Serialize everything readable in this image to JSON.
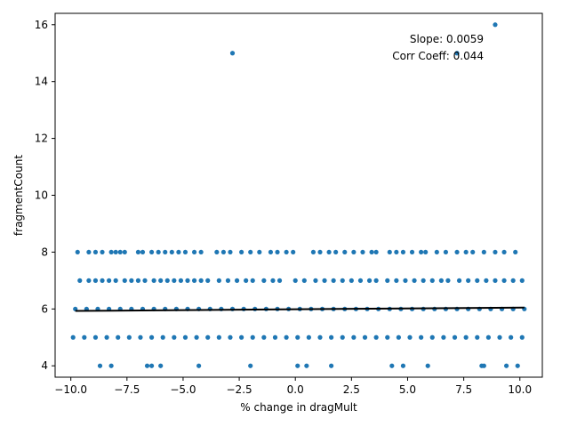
{
  "chart_data": {
    "type": "scatter",
    "xlabel": "% change in dragMult",
    "ylabel": "fragmentCount",
    "xlim": [
      -10.7,
      11.0
    ],
    "ylim": [
      3.6,
      16.4
    ],
    "xticks": [
      -10.0,
      -7.5,
      -5.0,
      -2.5,
      0.0,
      2.5,
      5.0,
      7.5,
      10.0
    ],
    "xtick_labels": [
      "−10.0",
      "−7.5",
      "−5.0",
      "−2.5",
      "0.0",
      "2.5",
      "5.0",
      "7.5",
      "10.0"
    ],
    "yticks": [
      4,
      6,
      8,
      10,
      12,
      14,
      16
    ],
    "ytick_labels": [
      "4",
      "6",
      "8",
      "10",
      "12",
      "14",
      "16"
    ],
    "grid": false,
    "annotations": [
      "Slope: 0.0059",
      "Corr Coeff: 0.044"
    ],
    "colors": {
      "points": "#1f77b4",
      "fit_line": "#000000"
    },
    "fit_line": {
      "x": [
        -9.8,
        10.2
      ],
      "y": [
        5.93,
        6.05
      ]
    },
    "series": [
      {
        "values": [
          {
            "x": -2.8,
            "y": 15
          },
          {
            "x": 8.9,
            "y": 16
          },
          {
            "x": 7.2,
            "y": 15
          },
          {
            "x": -8.7,
            "y": 4
          },
          {
            "x": -8.2,
            "y": 4
          },
          {
            "x": -6.6,
            "y": 4
          },
          {
            "x": -6.4,
            "y": 4
          },
          {
            "x": -6.0,
            "y": 4
          },
          {
            "x": -4.3,
            "y": 4
          },
          {
            "x": -2.0,
            "y": 4
          },
          {
            "x": 0.1,
            "y": 4
          },
          {
            "x": 0.5,
            "y": 4
          },
          {
            "x": 1.6,
            "y": 4
          },
          {
            "x": 4.3,
            "y": 4
          },
          {
            "x": 4.8,
            "y": 4
          },
          {
            "x": 5.9,
            "y": 4
          },
          {
            "x": 8.3,
            "y": 4
          },
          {
            "x": 8.4,
            "y": 4
          },
          {
            "x": 9.4,
            "y": 4
          },
          {
            "x": 9.9,
            "y": 4
          },
          {
            "x": -9.7,
            "y": 8
          },
          {
            "x": -9.2,
            "y": 8
          },
          {
            "x": -8.9,
            "y": 8
          },
          {
            "x": -8.6,
            "y": 8
          },
          {
            "x": -8.2,
            "y": 8
          },
          {
            "x": -8.0,
            "y": 8
          },
          {
            "x": -7.8,
            "y": 8
          },
          {
            "x": -7.6,
            "y": 8
          },
          {
            "x": -7.0,
            "y": 8
          },
          {
            "x": -6.8,
            "y": 8
          },
          {
            "x": -6.4,
            "y": 8
          },
          {
            "x": -6.1,
            "y": 8
          },
          {
            "x": -5.8,
            "y": 8
          },
          {
            "x": -5.5,
            "y": 8
          },
          {
            "x": -5.2,
            "y": 8
          },
          {
            "x": -4.9,
            "y": 8
          },
          {
            "x": -4.5,
            "y": 8
          },
          {
            "x": -4.2,
            "y": 8
          },
          {
            "x": -3.5,
            "y": 8
          },
          {
            "x": -3.2,
            "y": 8
          },
          {
            "x": -2.9,
            "y": 8
          },
          {
            "x": -2.4,
            "y": 8
          },
          {
            "x": -2.0,
            "y": 8
          },
          {
            "x": -1.6,
            "y": 8
          },
          {
            "x": -1.1,
            "y": 8
          },
          {
            "x": -0.8,
            "y": 8
          },
          {
            "x": -0.4,
            "y": 8
          },
          {
            "x": -0.1,
            "y": 8
          },
          {
            "x": 0.8,
            "y": 8
          },
          {
            "x": 1.1,
            "y": 8
          },
          {
            "x": 1.5,
            "y": 8
          },
          {
            "x": 1.8,
            "y": 8
          },
          {
            "x": 2.2,
            "y": 8
          },
          {
            "x": 2.6,
            "y": 8
          },
          {
            "x": 3.0,
            "y": 8
          },
          {
            "x": 3.4,
            "y": 8
          },
          {
            "x": 3.6,
            "y": 8
          },
          {
            "x": 4.2,
            "y": 8
          },
          {
            "x": 4.5,
            "y": 8
          },
          {
            "x": 4.8,
            "y": 8
          },
          {
            "x": 5.2,
            "y": 8
          },
          {
            "x": 5.6,
            "y": 8
          },
          {
            "x": 5.8,
            "y": 8
          },
          {
            "x": 6.3,
            "y": 8
          },
          {
            "x": 6.7,
            "y": 8
          },
          {
            "x": 7.2,
            "y": 8
          },
          {
            "x": 7.6,
            "y": 8
          },
          {
            "x": 7.9,
            "y": 8
          },
          {
            "x": 8.4,
            "y": 8
          },
          {
            "x": 8.9,
            "y": 8
          },
          {
            "x": 9.3,
            "y": 8
          },
          {
            "x": 9.8,
            "y": 8
          },
          {
            "x": -9.6,
            "y": 7
          },
          {
            "x": -9.2,
            "y": 7
          },
          {
            "x": -8.9,
            "y": 7
          },
          {
            "x": -8.6,
            "y": 7
          },
          {
            "x": -8.3,
            "y": 7
          },
          {
            "x": -8.0,
            "y": 7
          },
          {
            "x": -7.6,
            "y": 7
          },
          {
            "x": -7.3,
            "y": 7
          },
          {
            "x": -7.0,
            "y": 7
          },
          {
            "x": -6.7,
            "y": 7
          },
          {
            "x": -6.3,
            "y": 7
          },
          {
            "x": -6.0,
            "y": 7
          },
          {
            "x": -5.7,
            "y": 7
          },
          {
            "x": -5.4,
            "y": 7
          },
          {
            "x": -5.1,
            "y": 7
          },
          {
            "x": -4.8,
            "y": 7
          },
          {
            "x": -4.5,
            "y": 7
          },
          {
            "x": -4.2,
            "y": 7
          },
          {
            "x": -3.9,
            "y": 7
          },
          {
            "x": -3.4,
            "y": 7
          },
          {
            "x": -3.0,
            "y": 7
          },
          {
            "x": -2.6,
            "y": 7
          },
          {
            "x": -2.2,
            "y": 7
          },
          {
            "x": -1.9,
            "y": 7
          },
          {
            "x": -1.4,
            "y": 7
          },
          {
            "x": -1.0,
            "y": 7
          },
          {
            "x": -0.7,
            "y": 7
          },
          {
            "x": 0.0,
            "y": 7
          },
          {
            "x": 0.4,
            "y": 7
          },
          {
            "x": 0.9,
            "y": 7
          },
          {
            "x": 1.3,
            "y": 7
          },
          {
            "x": 1.7,
            "y": 7
          },
          {
            "x": 2.1,
            "y": 7
          },
          {
            "x": 2.5,
            "y": 7
          },
          {
            "x": 2.9,
            "y": 7
          },
          {
            "x": 3.3,
            "y": 7
          },
          {
            "x": 3.6,
            "y": 7
          },
          {
            "x": 4.1,
            "y": 7
          },
          {
            "x": 4.5,
            "y": 7
          },
          {
            "x": 4.9,
            "y": 7
          },
          {
            "x": 5.3,
            "y": 7
          },
          {
            "x": 5.7,
            "y": 7
          },
          {
            "x": 6.1,
            "y": 7
          },
          {
            "x": 6.5,
            "y": 7
          },
          {
            "x": 6.8,
            "y": 7
          },
          {
            "x": 7.3,
            "y": 7
          },
          {
            "x": 7.7,
            "y": 7
          },
          {
            "x": 8.1,
            "y": 7
          },
          {
            "x": 8.5,
            "y": 7
          },
          {
            "x": 8.9,
            "y": 7
          },
          {
            "x": 9.3,
            "y": 7
          },
          {
            "x": 9.7,
            "y": 7
          },
          {
            "x": 10.1,
            "y": 7
          },
          {
            "x": -9.8,
            "y": 6
          },
          {
            "x": -9.3,
            "y": 6
          },
          {
            "x": -8.8,
            "y": 6
          },
          {
            "x": -8.3,
            "y": 6
          },
          {
            "x": -7.8,
            "y": 6
          },
          {
            "x": -7.3,
            "y": 6
          },
          {
            "x": -6.8,
            "y": 6
          },
          {
            "x": -6.3,
            "y": 6
          },
          {
            "x": -5.8,
            "y": 6
          },
          {
            "x": -5.3,
            "y": 6
          },
          {
            "x": -4.8,
            "y": 6
          },
          {
            "x": -4.3,
            "y": 6
          },
          {
            "x": -3.8,
            "y": 6
          },
          {
            "x": -3.3,
            "y": 6
          },
          {
            "x": -2.8,
            "y": 6
          },
          {
            "x": -2.3,
            "y": 6
          },
          {
            "x": -1.8,
            "y": 6
          },
          {
            "x": -1.3,
            "y": 6
          },
          {
            "x": -0.8,
            "y": 6
          },
          {
            "x": -0.3,
            "y": 6
          },
          {
            "x": 0.2,
            "y": 6
          },
          {
            "x": 0.7,
            "y": 6
          },
          {
            "x": 1.2,
            "y": 6
          },
          {
            "x": 1.7,
            "y": 6
          },
          {
            "x": 2.2,
            "y": 6
          },
          {
            "x": 2.7,
            "y": 6
          },
          {
            "x": 3.2,
            "y": 6
          },
          {
            "x": 3.7,
            "y": 6
          },
          {
            "x": 4.2,
            "y": 6
          },
          {
            "x": 4.7,
            "y": 6
          },
          {
            "x": 5.2,
            "y": 6
          },
          {
            "x": 5.7,
            "y": 6
          },
          {
            "x": 6.2,
            "y": 6
          },
          {
            "x": 6.7,
            "y": 6
          },
          {
            "x": 7.2,
            "y": 6
          },
          {
            "x": 7.7,
            "y": 6
          },
          {
            "x": 8.2,
            "y": 6
          },
          {
            "x": 8.7,
            "y": 6
          },
          {
            "x": 9.2,
            "y": 6
          },
          {
            "x": 9.7,
            "y": 6
          },
          {
            "x": 10.2,
            "y": 6
          },
          {
            "x": -9.9,
            "y": 5
          },
          {
            "x": -9.4,
            "y": 5
          },
          {
            "x": -8.9,
            "y": 5
          },
          {
            "x": -8.4,
            "y": 5
          },
          {
            "x": -7.9,
            "y": 5
          },
          {
            "x": -7.4,
            "y": 5
          },
          {
            "x": -6.9,
            "y": 5
          },
          {
            "x": -6.4,
            "y": 5
          },
          {
            "x": -5.9,
            "y": 5
          },
          {
            "x": -5.4,
            "y": 5
          },
          {
            "x": -4.9,
            "y": 5
          },
          {
            "x": -4.4,
            "y": 5
          },
          {
            "x": -3.9,
            "y": 5
          },
          {
            "x": -3.4,
            "y": 5
          },
          {
            "x": -2.9,
            "y": 5
          },
          {
            "x": -2.4,
            "y": 5
          },
          {
            "x": -1.9,
            "y": 5
          },
          {
            "x": -1.4,
            "y": 5
          },
          {
            "x": -0.9,
            "y": 5
          },
          {
            "x": -0.4,
            "y": 5
          },
          {
            "x": 0.1,
            "y": 5
          },
          {
            "x": 0.6,
            "y": 5
          },
          {
            "x": 1.1,
            "y": 5
          },
          {
            "x": 1.6,
            "y": 5
          },
          {
            "x": 2.1,
            "y": 5
          },
          {
            "x": 2.6,
            "y": 5
          },
          {
            "x": 3.1,
            "y": 5
          },
          {
            "x": 3.6,
            "y": 5
          },
          {
            "x": 4.1,
            "y": 5
          },
          {
            "x": 4.6,
            "y": 5
          },
          {
            "x": 5.1,
            "y": 5
          },
          {
            "x": 5.6,
            "y": 5
          },
          {
            "x": 6.1,
            "y": 5
          },
          {
            "x": 6.6,
            "y": 5
          },
          {
            "x": 7.1,
            "y": 5
          },
          {
            "x": 7.6,
            "y": 5
          },
          {
            "x": 8.1,
            "y": 5
          },
          {
            "x": 8.6,
            "y": 5
          },
          {
            "x": 9.1,
            "y": 5
          },
          {
            "x": 9.6,
            "y": 5
          },
          {
            "x": 10.1,
            "y": 5
          }
        ]
      }
    ]
  }
}
